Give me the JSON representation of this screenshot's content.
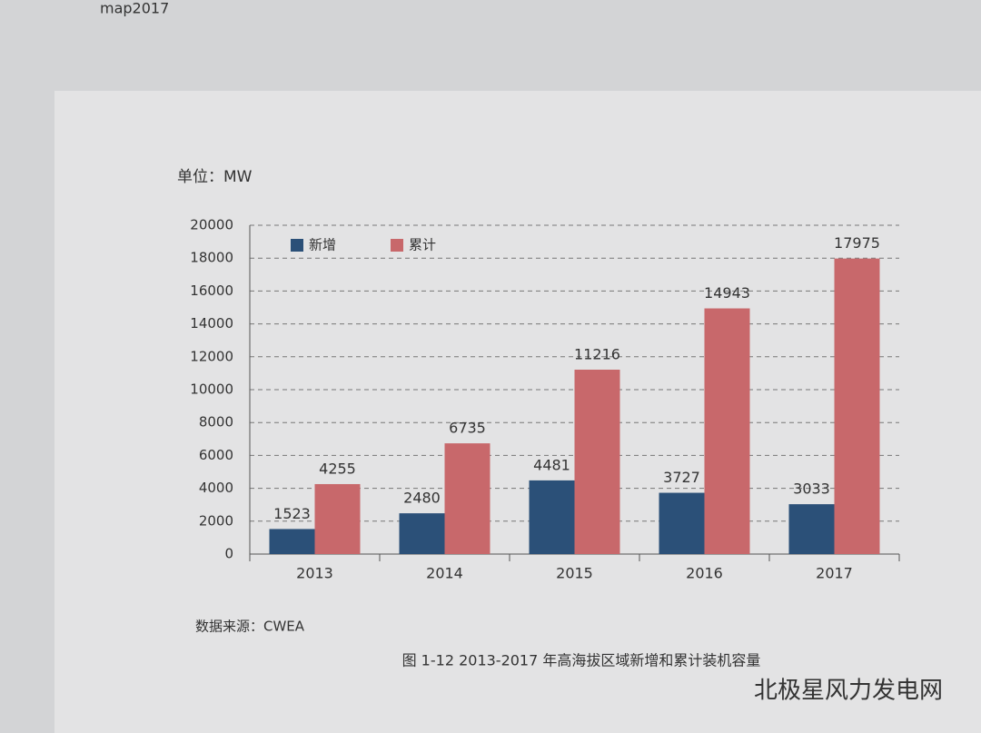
{
  "page_header": "map2017",
  "watermark": "北极星风力发电网",
  "chart_data": {
    "type": "bar",
    "title": "图 1-12 2013-2017 年高海拔区域新增和累计装机容量",
    "unit_label": "单位：MW",
    "source": "数据来源：CWEA",
    "categories": [
      "2013",
      "2014",
      "2015",
      "2016",
      "2017"
    ],
    "series": [
      {
        "name": "新增",
        "color": "#2b5078",
        "values": [
          1523,
          2480,
          4481,
          3727,
          3033
        ]
      },
      {
        "name": "累计",
        "color": "#c8686b",
        "values": [
          4255,
          6735,
          11216,
          14943,
          17975
        ]
      }
    ],
    "ylim": [
      0,
      20000
    ],
    "yticks": [
      0,
      2000,
      4000,
      6000,
      8000,
      10000,
      12000,
      14000,
      16000,
      18000,
      20000
    ],
    "grid": true,
    "legend": "top-left"
  }
}
